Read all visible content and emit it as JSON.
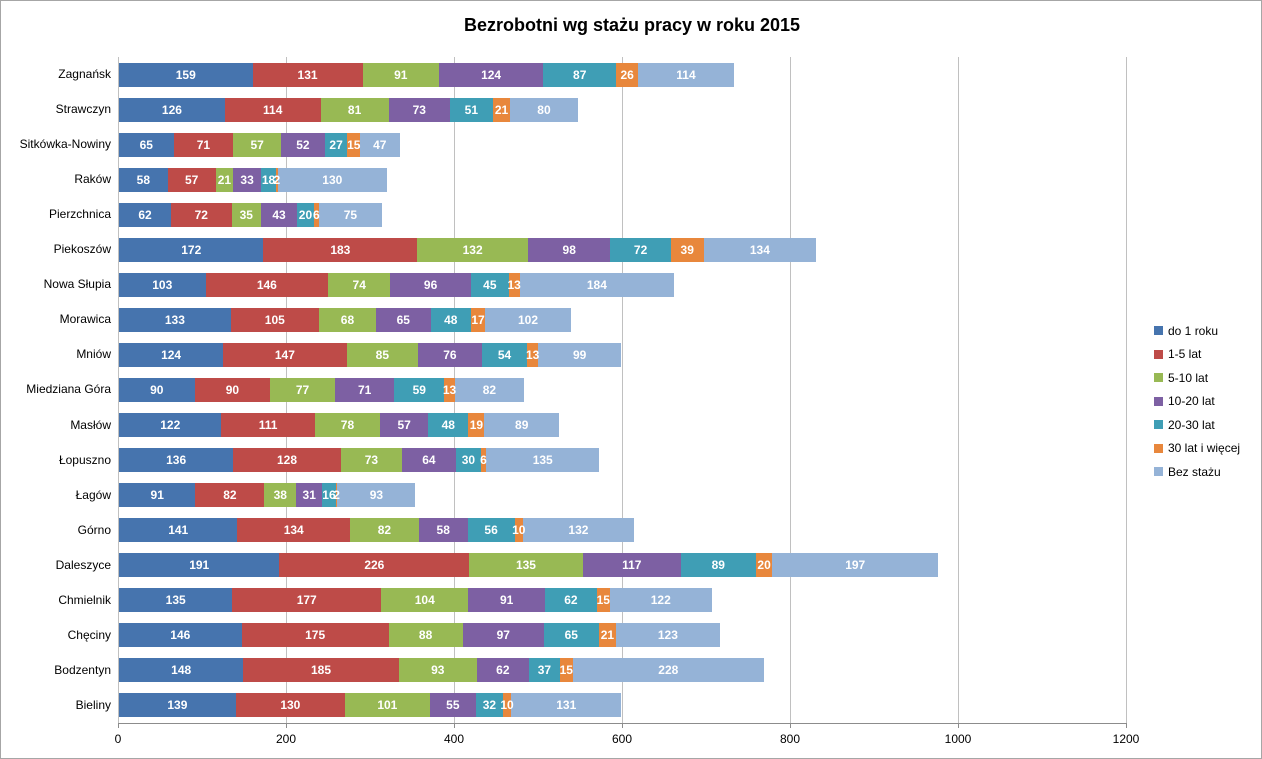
{
  "title": "Bezrobotni wg stażu pracy w roku 2015",
  "chart_data": {
    "type": "bar",
    "stacked": true,
    "orientation": "horizontal",
    "title": "Bezrobotni wg stażu pracy w roku 2015",
    "xlabel": "",
    "ylabel": "",
    "xlim": [
      0,
      1200
    ],
    "xticks": [
      0,
      200,
      400,
      600,
      800,
      1000,
      1200
    ],
    "grid": "vertical",
    "legend_position": "right",
    "categories": [
      "Zagnańsk",
      "Strawczyn",
      "Sitkówka-Nowiny",
      "Raków",
      "Pierzchnica",
      "Piekoszów",
      "Nowa Słupia",
      "Morawica",
      "Mniów",
      "Miedziana Góra",
      "Masłów",
      "Łopuszno",
      "Łagów",
      "Górno",
      "Daleszyce",
      "Chmielnik",
      "Chęciny",
      "Bodzentyn",
      "Bieliny"
    ],
    "series": [
      {
        "name": "do 1 roku",
        "color": "#4674ae",
        "values": [
          159,
          126,
          65,
          58,
          62,
          172,
          103,
          133,
          124,
          90,
          122,
          136,
          91,
          141,
          191,
          135,
          146,
          148,
          139
        ]
      },
      {
        "name": "1-5 lat",
        "color": "#be4b48",
        "values": [
          131,
          114,
          71,
          57,
          72,
          183,
          146,
          105,
          147,
          90,
          111,
          128,
          82,
          134,
          226,
          177,
          175,
          185,
          130
        ]
      },
      {
        "name": "5-10 lat",
        "color": "#98b954",
        "values": [
          91,
          81,
          57,
          21,
          35,
          132,
          74,
          68,
          85,
          77,
          78,
          73,
          38,
          82,
          135,
          104,
          88,
          93,
          101
        ]
      },
      {
        "name": "10-20 lat",
        "color": "#7d60a3",
        "values": [
          124,
          73,
          52,
          33,
          43,
          98,
          96,
          65,
          76,
          71,
          57,
          64,
          31,
          58,
          117,
          91,
          97,
          62,
          55
        ]
      },
      {
        "name": "20-30 lat",
        "color": "#3f9eb5",
        "values": [
          87,
          51,
          27,
          18,
          20,
          72,
          45,
          48,
          54,
          59,
          48,
          30,
          16,
          56,
          89,
          62,
          65,
          37,
          32
        ]
      },
      {
        "name": "30 lat i więcej",
        "color": "#e8873c",
        "values": [
          26,
          21,
          15,
          2,
          6,
          39,
          13,
          17,
          13,
          13,
          19,
          6,
          2,
          10,
          20,
          15,
          21,
          15,
          10
        ]
      },
      {
        "name": "Bez stażu",
        "color": "#95b3d7",
        "values": [
          114,
          80,
          47,
          130,
          75,
          134,
          184,
          102,
          99,
          82,
          89,
          135,
          93,
          132,
          197,
          122,
          123,
          228,
          131
        ]
      }
    ]
  }
}
